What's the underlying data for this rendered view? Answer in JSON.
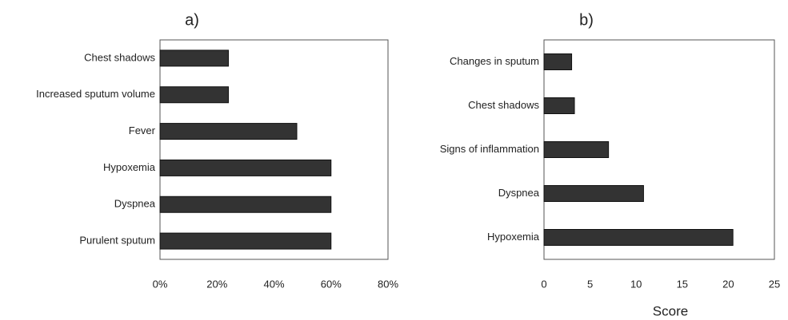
{
  "chart_data": [
    {
      "type": "bar",
      "orientation": "horizontal",
      "title": "a)",
      "categories": [
        "Chest shadows",
        "Increased sputum volume",
        "Fever",
        "Hypoxemia",
        "Dyspnea",
        "Purulent sputum"
      ],
      "values": [
        24,
        24,
        48,
        60,
        60,
        60
      ],
      "color": "#333333",
      "xlim": [
        0,
        80
      ],
      "xticks": [
        {
          "value": 0,
          "label": "0%"
        },
        {
          "value": 20,
          "label": "20%"
        },
        {
          "value": 40,
          "label": "40%"
        },
        {
          "value": 60,
          "label": "60%"
        },
        {
          "value": 80,
          "label": "80%"
        }
      ],
      "grid": false
    },
    {
      "type": "bar",
      "orientation": "horizontal",
      "title": "b)",
      "xlabel": "Score",
      "categories": [
        "Changes in sputum",
        "Chest shadows",
        "Signs of inflammation",
        "Dyspnea",
        "Hypoxemia"
      ],
      "values": [
        3,
        3.3,
        7,
        10.8,
        20.5
      ],
      "color": "#333333",
      "xlim": [
        0,
        25
      ],
      "xticks": [
        0,
        5,
        10,
        15,
        20,
        25
      ],
      "grid": false
    }
  ]
}
